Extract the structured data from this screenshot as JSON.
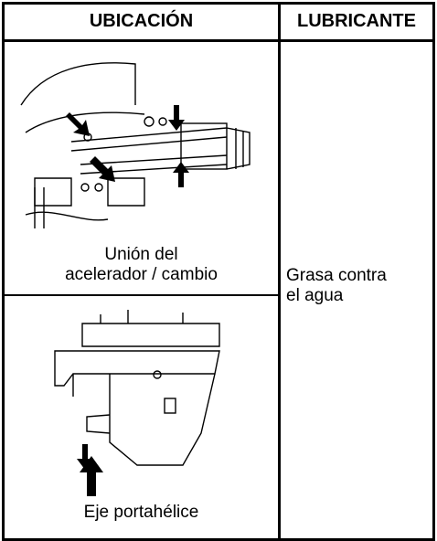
{
  "table": {
    "headers": [
      "UBICACIÓN",
      "LUBRICANTE"
    ],
    "rows": [
      {
        "location_lines": [
          "Unión del",
          "acelerador / cambio"
        ]
      },
      {
        "location_lines": [
          "Eje portahélice"
        ]
      }
    ],
    "lubricant_lines": [
      "Grasa contra",
      "el agua"
    ]
  }
}
